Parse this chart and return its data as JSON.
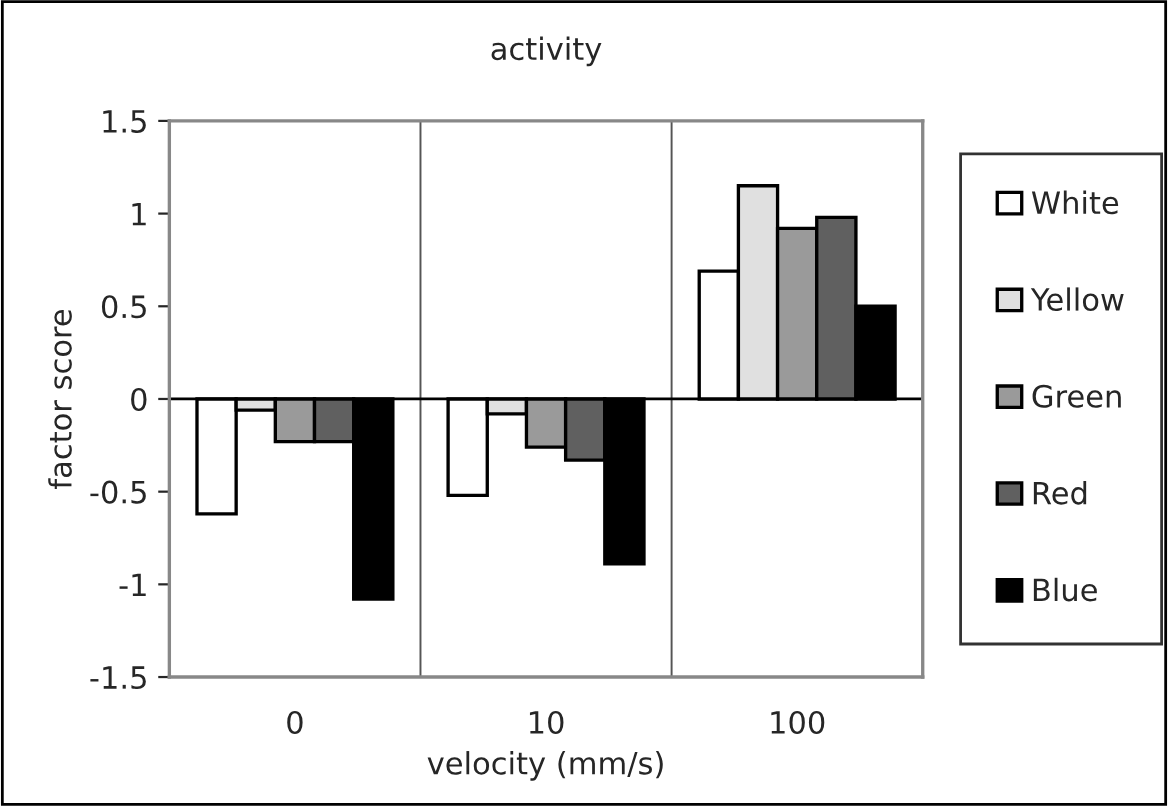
{
  "chart_data": {
    "type": "bar",
    "title": "activity",
    "xlabel": "velocity (mm/s)",
    "ylabel": "factor score",
    "categories": [
      "0",
      "10",
      "100"
    ],
    "series": [
      {
        "name": "White",
        "color": "#ffffff",
        "values": [
          -0.62,
          -0.52,
          0.69
        ]
      },
      {
        "name": "Yellow",
        "color": "#e0e0e0",
        "values": [
          -0.06,
          -0.08,
          1.15
        ]
      },
      {
        "name": "Green",
        "color": "#9a9a9a",
        "values": [
          -0.23,
          -0.26,
          0.92
        ]
      },
      {
        "name": "Red",
        "color": "#606060",
        "values": [
          -0.23,
          -0.33,
          0.98
        ]
      },
      {
        "name": "Blue",
        "color": "#000000",
        "values": [
          -1.08,
          -0.89,
          0.5
        ]
      }
    ],
    "ylim": [
      -1.5,
      1.5
    ],
    "yticks": [
      -1.5,
      -1,
      -0.5,
      0,
      0.5,
      1,
      1.5
    ],
    "grid": "x",
    "legend": "right"
  }
}
